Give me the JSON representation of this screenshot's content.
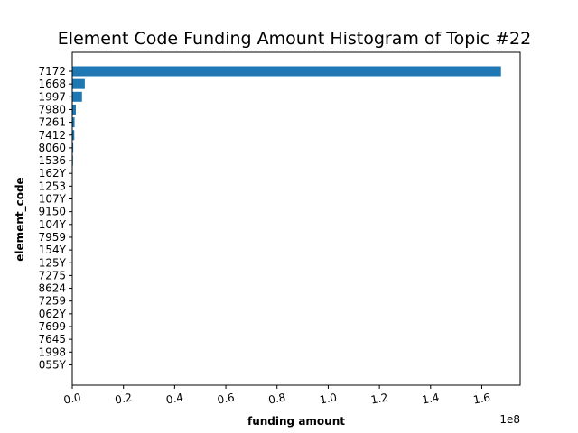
{
  "chart_data": {
    "type": "bar",
    "orientation": "horizontal",
    "title": "Element Code Funding Amount Histogram of Topic #22",
    "xlabel": "funding amount",
    "ylabel": "element_code",
    "x_offset_label": "1e8",
    "x_scale": 100000000,
    "xlim": [
      0,
      1.75
    ],
    "x_ticks": [
      "0.0",
      "0.2",
      "0.4",
      "0.6",
      "0.8",
      "1.0",
      "1.2",
      "1.4",
      "1.6"
    ],
    "categories": [
      "7172",
      "1668",
      "1997",
      "7980",
      "7261",
      "7412",
      "8060",
      "1536",
      "162Y",
      "1253",
      "107Y",
      "9150",
      "104Y",
      "7959",
      "154Y",
      "125Y",
      "7275",
      "8624",
      "7259",
      "062Y",
      "7699",
      "7645",
      "1998",
      "055Y"
    ],
    "values": [
      1.675,
      0.049,
      0.038,
      0.014,
      0.009,
      0.008,
      0.004,
      0.003,
      0.001,
      0.001,
      0.0008,
      0.0007,
      0.0006,
      0.0005,
      0.0004,
      0.0003,
      0.0003,
      0.0002,
      0.0002,
      0.0002,
      0.0001,
      0.0001,
      0.0001,
      0.0001
    ],
    "bar_color": "#1f77b4",
    "grid": false
  }
}
